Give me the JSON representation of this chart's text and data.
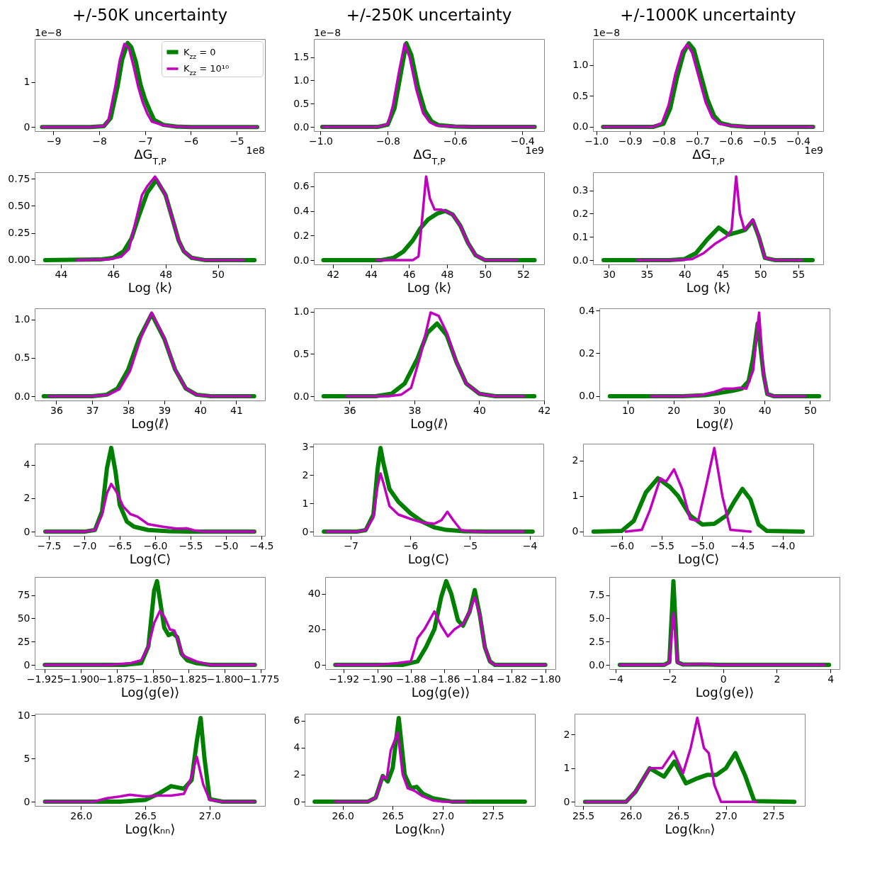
{
  "chart_data": [
    {
      "type": "line",
      "title": "+/-50K uncertainty",
      "xlabel": "ΔG$_{T,P}$",
      "legend": "top right",
      "annotations": [
        "1e−8",
        "1e8"
      ],
      "xlim": [
        -9.41,
        -4.38
      ],
      "xticks": [
        -9,
        -8,
        -7,
        -6,
        -5
      ],
      "ylim": [
        -0.09,
        1.96
      ],
      "yticks": [
        0,
        1
      ],
      "series": [
        {
          "name": "K$_{zz}$ = 0",
          "color": "#008000",
          "x": [
            -9.25,
            -8.2,
            -7.9,
            -7.75,
            -7.6,
            -7.5,
            -7.38,
            -7.3,
            -7.2,
            -7.1,
            -7.0,
            -6.9,
            -6.8,
            -6.6,
            -6.3,
            -6.0,
            -4.55
          ],
          "values": [
            0,
            0,
            0.02,
            0.2,
            0.9,
            1.5,
            1.87,
            1.78,
            1.45,
            0.95,
            0.62,
            0.38,
            0.16,
            0.05,
            0.01,
            0,
            0
          ]
        },
        {
          "name": "K$_{zz}$ = 10¹⁰",
          "color": "#bf00bf",
          "x": [
            -9.25,
            -8.2,
            -7.9,
            -7.8,
            -7.65,
            -7.55,
            -7.45,
            -7.35,
            -7.25,
            -7.15,
            -7.05,
            -6.95,
            -6.85,
            -6.6,
            -6.3,
            -6.0,
            -4.55
          ],
          "values": [
            0,
            0,
            0.02,
            0.15,
            0.9,
            1.5,
            1.85,
            1.75,
            1.35,
            0.9,
            0.55,
            0.3,
            0.12,
            0.04,
            0.01,
            0,
            0
          ]
        }
      ]
    },
    {
      "type": "line",
      "title": "+/-250K uncertainty",
      "xlabel": "ΔG$_{T,P}$",
      "annotations": [
        "1e−8",
        "1e9"
      ],
      "xlim": [
        -1.02,
        -0.335
      ],
      "xticks": [
        {
          "value": -1.0,
          "label": "−1.0"
        },
        {
          "value": -0.8,
          "label": "−0.8"
        },
        {
          "value": -0.6,
          "label": "−0.6"
        },
        {
          "value": -0.4,
          "label": "−0.4"
        }
      ],
      "ylim": [
        -0.09,
        1.89
      ],
      "yticks": [
        {
          "value": 0,
          "label": "0.0"
        },
        {
          "value": 0.5,
          "label": "0.5"
        },
        {
          "value": 1,
          "label": "1.0"
        },
        {
          "value": 1.5,
          "label": "1.5"
        }
      ],
      "series": [
        {
          "color": "#008000",
          "x": [
            -0.995,
            -0.83,
            -0.8,
            -0.78,
            -0.76,
            -0.745,
            -0.73,
            -0.71,
            -0.69,
            -0.67,
            -0.65,
            -0.6,
            -0.55,
            -0.363
          ],
          "values": [
            0,
            0,
            0.05,
            0.4,
            1.2,
            1.8,
            1.55,
            0.85,
            0.35,
            0.12,
            0.04,
            0.01,
            0,
            0
          ]
        },
        {
          "color": "#bf00bf",
          "x": [
            -0.995,
            -0.83,
            -0.8,
            -0.785,
            -0.765,
            -0.75,
            -0.735,
            -0.715,
            -0.695,
            -0.675,
            -0.655,
            -0.6,
            -0.55,
            -0.363
          ],
          "values": [
            0,
            0,
            0.06,
            0.45,
            1.25,
            1.78,
            1.5,
            0.8,
            0.3,
            0.1,
            0.03,
            0.01,
            0,
            0
          ]
        }
      ]
    },
    {
      "type": "line",
      "title": "+/-1000K uncertainty",
      "xlabel": "ΔG$_{T,P}$",
      "annotations": [
        "1e−8",
        "1e9"
      ],
      "xlim": [
        -1.01,
        -0.325
      ],
      "xticks": [
        {
          "value": -1.0,
          "label": "−1.0"
        },
        {
          "value": -0.9,
          "label": "−0.9"
        },
        {
          "value": -0.8,
          "label": "−0.8"
        },
        {
          "value": -0.7,
          "label": "−0.7"
        },
        {
          "value": -0.6,
          "label": "−0.6"
        },
        {
          "value": -0.5,
          "label": "−0.5"
        },
        {
          "value": -0.4,
          "label": "−0.4"
        }
      ],
      "ylim": [
        -0.07,
        1.42
      ],
      "yticks": [
        {
          "value": 0,
          "label": "0.0"
        },
        {
          "value": 0.5,
          "label": "0.5"
        },
        {
          "value": 1,
          "label": "1.0"
        }
      ],
      "series": [
        {
          "color": "#008000",
          "x": [
            -0.98,
            -0.83,
            -0.8,
            -0.78,
            -0.76,
            -0.74,
            -0.725,
            -0.71,
            -0.69,
            -0.67,
            -0.65,
            -0.63,
            -0.6,
            -0.55,
            -0.355
          ],
          "values": [
            0,
            0,
            0.05,
            0.3,
            0.8,
            1.2,
            1.35,
            1.25,
            0.85,
            0.45,
            0.18,
            0.06,
            0.02,
            0,
            0
          ]
        },
        {
          "color": "#bf00bf",
          "x": [
            -0.98,
            -0.83,
            -0.805,
            -0.785,
            -0.765,
            -0.745,
            -0.73,
            -0.715,
            -0.695,
            -0.675,
            -0.655,
            -0.635,
            -0.6,
            -0.55,
            -0.355
          ],
          "values": [
            0,
            0,
            0.06,
            0.35,
            0.85,
            1.22,
            1.33,
            1.2,
            0.8,
            0.4,
            0.15,
            0.05,
            0.02,
            0,
            0
          ]
        }
      ]
    },
    {
      "type": "line",
      "xlabel": "Log ⟨k⟩",
      "xlim": [
        43.0,
        51.8
      ],
      "xticks": [
        44,
        46,
        48,
        50
      ],
      "ylim": [
        -0.04,
        0.81
      ],
      "yticks": [
        {
          "value": 0,
          "label": "0.00"
        },
        {
          "value": 0.25,
          "label": "0.25"
        },
        {
          "value": 0.5,
          "label": "0.50"
        },
        {
          "value": 0.75,
          "label": "0.75"
        }
      ],
      "series": [
        {
          "color": "#008000",
          "x": [
            43.4,
            45.5,
            46.0,
            46.4,
            46.7,
            47.0,
            47.3,
            47.65,
            48.0,
            48.3,
            48.5,
            48.7,
            49.0,
            49.5,
            51.4
          ],
          "values": [
            0,
            0.005,
            0.02,
            0.08,
            0.2,
            0.42,
            0.62,
            0.74,
            0.6,
            0.35,
            0.18,
            0.08,
            0.02,
            0,
            0
          ]
        },
        {
          "color": "#bf00bf",
          "x": [
            44.6,
            45.8,
            46.3,
            46.6,
            46.85,
            47.1,
            47.3,
            47.6,
            48.0,
            48.3,
            48.5,
            48.7,
            49.0,
            49.5,
            51.0
          ],
          "values": [
            0,
            0.005,
            0.03,
            0.1,
            0.35,
            0.6,
            0.68,
            0.77,
            0.6,
            0.35,
            0.18,
            0.08,
            0.02,
            0,
            0
          ]
        }
      ]
    },
    {
      "type": "line",
      "xlabel": "Log ⟨k⟩",
      "xlim": [
        41.0,
        53.1
      ],
      "xticks": [
        42,
        44,
        46,
        48,
        50,
        52
      ],
      "ylim": [
        -0.034,
        0.714
      ],
      "yticks": [
        {
          "value": 0,
          "label": "0.0"
        },
        {
          "value": 0.2,
          "label": "0.2"
        },
        {
          "value": 0.4,
          "label": "0.4"
        },
        {
          "value": 0.6,
          "label": "0.6"
        }
      ],
      "series": [
        {
          "color": "#008000",
          "x": [
            41.5,
            44.5,
            45.2,
            45.7,
            46.2,
            46.6,
            47.0,
            47.5,
            47.9,
            48.3,
            48.7,
            49.1,
            49.5,
            50.0,
            52.6
          ],
          "values": [
            0,
            0,
            0.02,
            0.07,
            0.16,
            0.26,
            0.33,
            0.38,
            0.4,
            0.37,
            0.28,
            0.14,
            0.04,
            0,
            0
          ]
        },
        {
          "color": "#bf00bf",
          "x": [
            44.3,
            46.2,
            46.5,
            46.7,
            46.9,
            47.1,
            47.35,
            47.7,
            47.9,
            48.3,
            48.7,
            49.1,
            49.5,
            50.0,
            51.7
          ],
          "values": [
            0,
            0,
            0.03,
            0.35,
            0.68,
            0.5,
            0.41,
            0.41,
            0.4,
            0.37,
            0.28,
            0.14,
            0.04,
            0,
            0
          ]
        }
      ]
    },
    {
      "type": "line",
      "xlabel": "Log ⟨k⟩",
      "xlim": [
        27.9,
        58.3
      ],
      "xticks": [
        30,
        35,
        40,
        45,
        50,
        55
      ],
      "ylim": [
        -0.018,
        0.378
      ],
      "yticks": [
        {
          "value": 0,
          "label": "0.0"
        },
        {
          "value": 0.1,
          "label": "0.1"
        },
        {
          "value": 0.2,
          "label": "0.2"
        },
        {
          "value": 0.3,
          "label": "0.3"
        }
      ],
      "series": [
        {
          "color": "#008000",
          "x": [
            29.3,
            38.0,
            40.0,
            41.5,
            43.0,
            44.5,
            45.8,
            47.0,
            48.0,
            49.0,
            49.8,
            50.6,
            52.0,
            56.9
          ],
          "values": [
            0,
            0,
            0.005,
            0.03,
            0.09,
            0.14,
            0.11,
            0.12,
            0.13,
            0.17,
            0.1,
            0.01,
            0,
            0
          ]
        },
        {
          "color": "#bf00bf",
          "x": [
            33.7,
            39.0,
            41.0,
            42.5,
            44.0,
            45.5,
            46.2,
            46.8,
            47.3,
            47.9,
            48.4,
            49.0,
            49.8,
            50.6,
            52.0,
            55.5
          ],
          "values": [
            0,
            0,
            0.005,
            0.03,
            0.07,
            0.1,
            0.13,
            0.36,
            0.2,
            0.13,
            0.15,
            0.175,
            0.1,
            0.01,
            0,
            0
          ]
        }
      ]
    },
    {
      "type": "line",
      "xlabel": "Log⟨ℓ⟩",
      "xlim": [
        35.4,
        41.8
      ],
      "xticks": [
        36,
        37,
        38,
        39,
        40,
        41
      ],
      "ylim": [
        -0.055,
        1.145
      ],
      "yticks": [
        {
          "value": 0,
          "label": "0.0"
        },
        {
          "value": 0.5,
          "label": "0.5"
        },
        {
          "value": 1,
          "label": "1.0"
        }
      ],
      "series": [
        {
          "color": "#008000",
          "x": [
            35.65,
            37.0,
            37.4,
            37.7,
            38.0,
            38.3,
            38.65,
            39.0,
            39.3,
            39.6,
            39.9,
            40.3,
            41.5
          ],
          "values": [
            0,
            0,
            0.02,
            0.1,
            0.35,
            0.75,
            1.07,
            0.75,
            0.35,
            0.1,
            0.02,
            0,
            0
          ]
        },
        {
          "color": "#bf00bf",
          "x": [
            35.8,
            37.0,
            37.45,
            37.75,
            38.05,
            38.35,
            38.65,
            39.0,
            39.3,
            39.6,
            39.9,
            40.3,
            41.4
          ],
          "values": [
            0,
            0,
            0.02,
            0.09,
            0.33,
            0.76,
            1.09,
            0.76,
            0.35,
            0.1,
            0.02,
            0,
            0
          ]
        }
      ]
    },
    {
      "type": "line",
      "xlabel": "Log⟨ℓ⟩",
      "xlim": [
        34.9,
        42.0
      ],
      "xticks": [
        36,
        38,
        40,
        42
      ],
      "ylim": [
        -0.05,
        1.04
      ],
      "yticks": [
        {
          "value": 0,
          "label": "0.0"
        },
        {
          "value": 0.5,
          "label": "0.5"
        },
        {
          "value": 1,
          "label": "1.0"
        }
      ],
      "series": [
        {
          "color": "#008000",
          "x": [
            35.2,
            36.8,
            37.3,
            37.7,
            38.1,
            38.4,
            38.7,
            39.0,
            39.3,
            39.6,
            40.0,
            40.5,
            41.7
          ],
          "values": [
            0,
            0,
            0.03,
            0.15,
            0.45,
            0.75,
            0.86,
            0.72,
            0.4,
            0.15,
            0.03,
            0,
            0
          ]
        },
        {
          "color": "#bf00bf",
          "x": [
            35.9,
            37.2,
            37.6,
            37.9,
            38.2,
            38.5,
            38.75,
            39.0,
            39.3,
            39.6,
            40.0,
            40.5,
            41.4
          ],
          "values": [
            0,
            0,
            0.02,
            0.1,
            0.5,
            0.99,
            0.95,
            0.75,
            0.4,
            0.15,
            0.03,
            0,
            0
          ]
        }
      ]
    },
    {
      "type": "line",
      "xlabel": "Log⟨ℓ⟩",
      "xlim": [
        3.7,
        54.3
      ],
      "xticks": [
        10,
        20,
        30,
        40,
        50
      ],
      "ylim": [
        -0.02,
        0.41
      ],
      "yticks": [
        {
          "value": 0,
          "label": "0.0"
        },
        {
          "value": 0.2,
          "label": "0.2"
        },
        {
          "value": 0.4,
          "label": "0.4"
        }
      ],
      "series": [
        {
          "color": "#008000",
          "x": [
            6,
            22,
            27,
            30,
            33,
            35,
            36.5,
            37.5,
            38.5,
            39.8,
            40.6,
            42,
            52
          ],
          "values": [
            0,
            0,
            0.005,
            0.015,
            0.025,
            0.035,
            0.07,
            0.18,
            0.34,
            0.1,
            0.01,
            0,
            0
          ]
        },
        {
          "color": "#bf00bf",
          "x": [
            15,
            22,
            26,
            29,
            31,
            33,
            34.5,
            36,
            37.5,
            38.8,
            39.8,
            40.6,
            42,
            49
          ],
          "values": [
            0,
            0,
            0.005,
            0.02,
            0.035,
            0.035,
            0.04,
            0.035,
            0.12,
            0.39,
            0.1,
            0.01,
            0,
            0
          ]
        }
      ]
    },
    {
      "type": "line",
      "xlabel": "Log⟨C⟩",
      "xlim": [
        -7.7,
        -4.45
      ],
      "xticks": [
        {
          "value": -7.5,
          "label": "−7.5"
        },
        {
          "value": -7,
          "label": "−7.0"
        },
        {
          "value": -6.5,
          "label": "−6.5"
        },
        {
          "value": -6,
          "label": "−6.0"
        },
        {
          "value": -5.5,
          "label": "−5.5"
        },
        {
          "value": -5,
          "label": "−5.0"
        },
        {
          "value": -4.5,
          "label": "−4.5"
        }
      ],
      "ylim": [
        -0.25,
        5.25
      ],
      "yticks": [
        0,
        2,
        4
      ],
      "series": [
        {
          "color": "#008000",
          "x": [
            -7.55,
            -7.0,
            -6.85,
            -6.75,
            -6.68,
            -6.62,
            -6.56,
            -6.5,
            -6.4,
            -6.3,
            -6.1,
            -5.8,
            -5.5,
            -5.3,
            -4.6
          ],
          "values": [
            0,
            0,
            0.1,
            1.2,
            3.8,
            5.0,
            3.6,
            1.6,
            0.6,
            0.3,
            0.1,
            0.03,
            0,
            0,
            0
          ]
        },
        {
          "color": "#bf00bf",
          "x": [
            -7.55,
            -7.0,
            -6.85,
            -6.75,
            -6.68,
            -6.62,
            -6.55,
            -6.45,
            -6.35,
            -6.25,
            -6.1,
            -5.9,
            -5.7,
            -5.55,
            -5.45,
            -5.3,
            -4.6
          ],
          "values": [
            0,
            0,
            0.1,
            1.0,
            2.3,
            2.85,
            2.4,
            1.5,
            1.05,
            0.9,
            0.45,
            0.3,
            0.18,
            0.2,
            0.08,
            0,
            0
          ]
        }
      ]
    },
    {
      "type": "line",
      "xlabel": "Log⟨C⟩",
      "xlim": [
        -7.63,
        -3.77
      ],
      "xticks": [
        -7,
        -6,
        -5,
        -4
      ],
      "ylim": [
        -0.15,
        3.1
      ],
      "yticks": [
        0,
        1,
        2,
        3
      ],
      "series": [
        {
          "color": "#008000",
          "x": [
            -7.45,
            -6.9,
            -6.75,
            -6.62,
            -6.55,
            -6.5,
            -6.45,
            -6.35,
            -6.2,
            -6.0,
            -5.8,
            -5.6,
            -5.4,
            -5.1,
            -4.7,
            -3.95
          ],
          "values": [
            0,
            0,
            0.05,
            0.6,
            2.2,
            2.95,
            2.4,
            1.5,
            1.05,
            0.65,
            0.35,
            0.15,
            0.06,
            0.01,
            0,
            0
          ]
        },
        {
          "color": "#bf00bf",
          "x": [
            -7.4,
            -6.9,
            -6.75,
            -6.62,
            -6.55,
            -6.5,
            -6.45,
            -6.35,
            -6.2,
            -6.0,
            -5.8,
            -5.6,
            -5.48,
            -5.38,
            -5.28,
            -5.15,
            -4.9,
            -4.1
          ],
          "values": [
            0,
            0,
            0.05,
            0.5,
            1.6,
            2.05,
            1.7,
            0.9,
            0.6,
            0.45,
            0.32,
            0.28,
            0.4,
            0.7,
            0.4,
            0.05,
            0,
            0
          ]
        }
      ]
    },
    {
      "type": "line",
      "xlabel": "Log⟨C⟩",
      "xlim": [
        -6.48,
        -3.62
      ],
      "xticks": [
        {
          "value": -6,
          "label": "−6.0"
        },
        {
          "value": -5.5,
          "label": "−5.5"
        },
        {
          "value": -5,
          "label": "−5.0"
        },
        {
          "value": -4.5,
          "label": "−4.5"
        },
        {
          "value": -4,
          "label": "−4.0"
        }
      ],
      "ylim": [
        -0.12,
        2.47
      ],
      "yticks": [
        0,
        1,
        2
      ],
      "series": [
        {
          "color": "#008000",
          "x": [
            -6.35,
            -6.0,
            -5.85,
            -5.7,
            -5.55,
            -5.4,
            -5.3,
            -5.15,
            -5.0,
            -4.85,
            -4.7,
            -4.6,
            -4.5,
            -4.4,
            -4.3,
            -4.2,
            -3.75
          ],
          "values": [
            0,
            0.02,
            0.3,
            1.1,
            1.5,
            1.25,
            1.0,
            0.45,
            0.2,
            0.22,
            0.45,
            0.85,
            1.2,
            0.9,
            0.2,
            0.02,
            0
          ]
        },
        {
          "color": "#bf00bf",
          "x": [
            -5.95,
            -5.75,
            -5.65,
            -5.52,
            -5.45,
            -5.35,
            -5.25,
            -5.15,
            -5.05,
            -4.95,
            -4.85,
            -4.75,
            -4.65,
            -4.4
          ],
          "values": [
            0,
            0.05,
            0.6,
            1.5,
            1.4,
            1.75,
            1.2,
            0.35,
            0.3,
            1.3,
            2.35,
            1.0,
            0.05,
            0
          ]
        }
      ]
    },
    {
      "type": "line",
      "xlabel": "Log⟨g(e)⟩",
      "xlim": [
        -1.932,
        -1.772
      ],
      "xticks": [
        {
          "value": -1.925,
          "label": "−1.925"
        },
        {
          "value": -1.9,
          "label": "−1.900"
        },
        {
          "value": -1.875,
          "label": "−1.875"
        },
        {
          "value": -1.85,
          "label": "−1.850"
        },
        {
          "value": -1.825,
          "label": "−1.825"
        },
        {
          "value": -1.8,
          "label": "−1.800"
        },
        {
          "value": -1.775,
          "label": "−1.775"
        }
      ],
      "ylim": [
        -4.5,
        94.5
      ],
      "yticks": [
        0,
        25,
        50,
        75
      ],
      "series": [
        {
          "color": "#008000",
          "x": [
            -1.925,
            -1.87,
            -1.858,
            -1.853,
            -1.849,
            -1.847,
            -1.845,
            -1.842,
            -1.839,
            -1.836,
            -1.833,
            -1.83,
            -1.826,
            -1.82,
            -1.81,
            -1.779
          ],
          "values": [
            0,
            0,
            2,
            20,
            80,
            90,
            70,
            40,
            32,
            34,
            30,
            12,
            5,
            2,
            0,
            0
          ]
        },
        {
          "color": "#bf00bf",
          "x": [
            -1.925,
            -1.88,
            -1.865,
            -1.858,
            -1.853,
            -1.849,
            -1.845,
            -1.842,
            -1.838,
            -1.835,
            -1.832,
            -1.829,
            -1.826,
            -1.82,
            -1.81,
            -1.779
          ],
          "values": [
            0,
            0,
            2,
            5,
            20,
            45,
            58,
            52,
            38,
            37,
            25,
            10,
            8,
            4,
            0,
            0
          ]
        }
      ]
    },
    {
      "type": "line",
      "xlabel": "Log⟨g(e)⟩",
      "xlim": [
        -1.931,
        -1.794
      ],
      "xticks": [
        {
          "value": -1.92,
          "label": "−1.92"
        },
        {
          "value": -1.9,
          "label": "−1.90"
        },
        {
          "value": -1.88,
          "label": "−1.88"
        },
        {
          "value": -1.86,
          "label": "−1.86"
        },
        {
          "value": -1.84,
          "label": "−1.84"
        },
        {
          "value": -1.82,
          "label": "−1.82"
        },
        {
          "value": -1.8,
          "label": "−1.80"
        }
      ],
      "ylim": [
        -2.35,
        49.35
      ],
      "yticks": [
        0,
        20,
        40
      ],
      "series": [
        {
          "color": "#008000",
          "x": [
            -1.925,
            -1.885,
            -1.876,
            -1.871,
            -1.866,
            -1.862,
            -1.859,
            -1.856,
            -1.852,
            -1.849,
            -1.845,
            -1.842,
            -1.839,
            -1.836,
            -1.833,
            -1.83,
            -1.8
          ],
          "values": [
            0,
            0,
            2,
            10,
            20,
            38,
            47,
            40,
            25,
            22,
            30,
            42,
            28,
            10,
            2,
            0,
            0
          ]
        },
        {
          "color": "#bf00bf",
          "x": [
            -1.925,
            -1.9,
            -1.888,
            -1.88,
            -1.876,
            -1.872,
            -1.866,
            -1.862,
            -1.858,
            -1.854,
            -1.849,
            -1.845,
            -1.842,
            -1.839,
            -1.836,
            -1.833,
            -1.83,
            -1.8
          ],
          "values": [
            0,
            0,
            1,
            2,
            15,
            20,
            30,
            22,
            16,
            20,
            23,
            30,
            38,
            28,
            10,
            2,
            0,
            0
          ]
        }
      ]
    },
    {
      "type": "line",
      "xlabel": "Log⟨g(e)⟩",
      "xlim": [
        -4.24,
        4.34
      ],
      "xticks": [
        -4,
        -2,
        0,
        2,
        4
      ],
      "ylim": [
        -0.45,
        9.45
      ],
      "yticks": [
        {
          "value": 0,
          "label": "0.0"
        },
        {
          "value": 2.5,
          "label": "2.5"
        },
        {
          "value": 5,
          "label": "5.0"
        },
        {
          "value": 7.5,
          "label": "7.5"
        }
      ],
      "series": [
        {
          "color": "#008000",
          "x": [
            -3.85,
            -2.2,
            -2.0,
            -1.85,
            -1.7,
            -1.5,
            -0.6,
            0,
            3.95
          ],
          "values": [
            0,
            0,
            0.3,
            9.0,
            0.3,
            0.05,
            0.05,
            0,
            0
          ]
        },
        {
          "color": "#bf00bf",
          "x": [
            -3.85,
            -2.2,
            -2.0,
            -1.85,
            -1.7,
            -1.5,
            -0.6,
            -0.2,
            3.8
          ],
          "values": [
            0,
            0,
            0.2,
            5.6,
            0.25,
            0.05,
            0.1,
            0,
            0
          ]
        }
      ]
    },
    {
      "type": "line",
      "xlabel": "Log⟨kₙₙ⟩",
      "xlim": [
        25.64,
        27.43
      ],
      "xticks": [
        {
          "value": 26,
          "label": "26.0"
        },
        {
          "value": 26.5,
          "label": "26.5"
        },
        {
          "value": 27,
          "label": "27.0"
        }
      ],
      "ylim": [
        -0.49,
        10.19
      ],
      "yticks": [
        0,
        5,
        10
      ],
      "series": [
        {
          "color": "#008000",
          "x": [
            25.72,
            26.3,
            26.5,
            26.6,
            26.7,
            26.8,
            26.86,
            26.9,
            26.93,
            26.96,
            27.0,
            27.1,
            27.35
          ],
          "values": [
            0,
            0,
            0.2,
            0.9,
            1.8,
            1.5,
            2.5,
            7.0,
            9.7,
            5.0,
            0.3,
            0,
            0
          ]
        },
        {
          "color": "#bf00bf",
          "x": [
            25.72,
            26.1,
            26.2,
            26.3,
            26.38,
            26.5,
            26.6,
            26.7,
            26.8,
            26.85,
            26.9,
            26.95,
            27.0,
            27.1,
            27.35
          ],
          "values": [
            0,
            0,
            0.4,
            0.6,
            0.8,
            0.6,
            0.7,
            0.7,
            0.9,
            2.5,
            5.2,
            2.0,
            0.2,
            0,
            0
          ]
        }
      ]
    },
    {
      "type": "line",
      "xlabel": "Log⟨kₙₙ⟩",
      "xlim": [
        25.62,
        27.92
      ],
      "xticks": [
        {
          "value": 26,
          "label": "26.0"
        },
        {
          "value": 26.5,
          "label": "26.5"
        },
        {
          "value": 27,
          "label": "27.0"
        },
        {
          "value": 27.5,
          "label": "27.5"
        }
      ],
      "ylim": [
        -0.31,
        6.51
      ],
      "yticks": [
        0,
        2,
        4,
        6
      ],
      "series": [
        {
          "color": "#008000",
          "x": [
            25.72,
            26.25,
            26.33,
            26.4,
            26.45,
            26.5,
            26.56,
            26.62,
            26.68,
            26.74,
            26.8,
            26.9,
            27.1,
            27.82
          ],
          "values": [
            0,
            0,
            0.3,
            1.9,
            1.5,
            2.5,
            6.2,
            2.0,
            1.0,
            1.1,
            0.6,
            0.25,
            0,
            0
          ]
        },
        {
          "color": "#bf00bf",
          "x": [
            25.92,
            26.25,
            26.33,
            26.4,
            26.44,
            26.48,
            26.55,
            26.6,
            26.65,
            26.72,
            26.8,
            26.9,
            27.0,
            27.22
          ],
          "values": [
            0,
            0,
            0.3,
            1.9,
            1.7,
            3.8,
            5.1,
            2.0,
            1.0,
            0.8,
            0.4,
            0.1,
            0,
            0
          ]
        }
      ]
    },
    {
      "type": "line",
      "xlabel": "Log⟨kₙₙ⟩",
      "xlim": [
        25.41,
        27.83
      ],
      "xticks": [
        {
          "value": 25.5,
          "label": "25.5"
        },
        {
          "value": 26,
          "label": "26.0"
        },
        {
          "value": 26.5,
          "label": "26.5"
        },
        {
          "value": 27,
          "label": "27.0"
        },
        {
          "value": 27.5,
          "label": "27.5"
        }
      ],
      "ylim": [
        -0.12,
        2.62
      ],
      "yticks": [
        0,
        1,
        2
      ],
      "series": [
        {
          "color": "#008000",
          "x": [
            25.52,
            25.95,
            26.05,
            26.2,
            26.35,
            26.46,
            26.58,
            26.7,
            26.8,
            26.9,
            27.0,
            27.1,
            27.2,
            27.3,
            27.72
          ],
          "values": [
            0,
            0,
            0.3,
            1.0,
            0.75,
            1.2,
            0.55,
            0.7,
            0.8,
            0.8,
            1.0,
            1.45,
            0.8,
            0.02,
            0
          ]
        },
        {
          "color": "#bf00bf",
          "x": [
            25.52,
            25.95,
            26.05,
            26.2,
            26.33,
            26.45,
            26.55,
            26.63,
            26.7,
            26.77,
            26.82,
            26.88,
            26.95,
            27.32
          ],
          "values": [
            0,
            0,
            0.3,
            1.0,
            1.0,
            1.5,
            0.85,
            1.6,
            2.5,
            1.6,
            1.45,
            0.5,
            0,
            0
          ]
        }
      ]
    }
  ]
}
